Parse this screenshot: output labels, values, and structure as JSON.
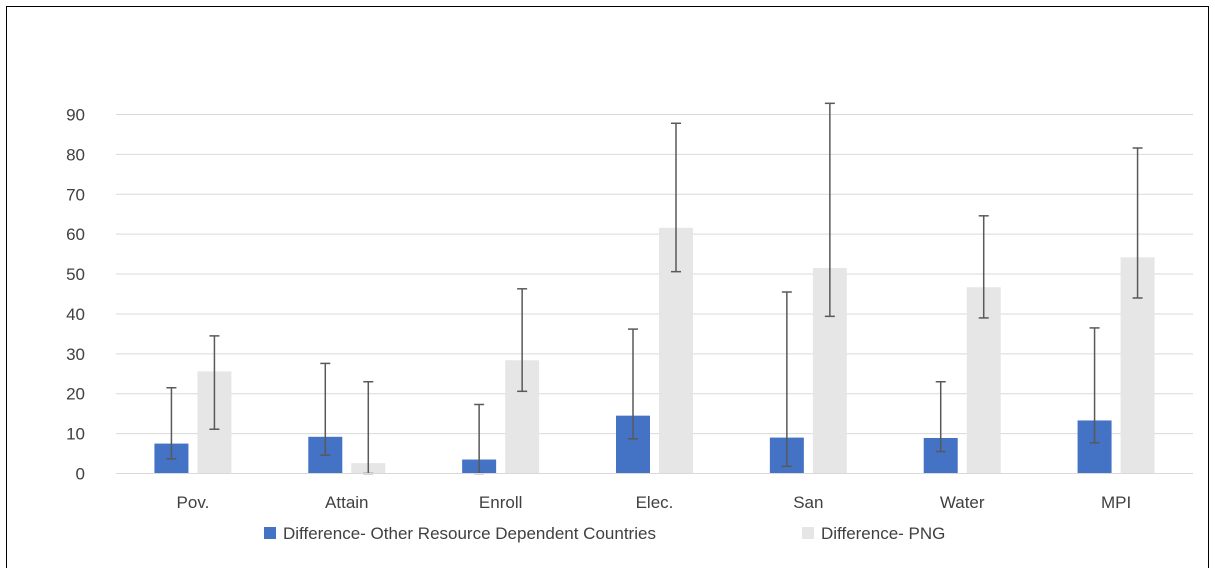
{
  "chart_data": {
    "type": "bar",
    "title": "",
    "xlabel": "",
    "ylabel": "",
    "ylim": [
      0,
      90
    ],
    "yticks": [
      0,
      10,
      20,
      30,
      40,
      50,
      60,
      70,
      80,
      90
    ],
    "grid": true,
    "legend_position": "bottom",
    "categories": [
      "Pov.",
      "Attain",
      "Enroll",
      "Elec.",
      "San",
      "Water",
      "MPI"
    ],
    "series": [
      {
        "name": "Difference- Other Resource Dependent Countries",
        "color": "#4472C4",
        "values": [
          7.5,
          9.2,
          3.5,
          14.5,
          9.0,
          8.9,
          13.3
        ],
        "error_low": [
          3.7,
          4.6,
          0.0,
          8.7,
          1.8,
          5.5,
          7.7
        ],
        "error_high": [
          21.5,
          27.6,
          17.3,
          36.2,
          45.5,
          23.0,
          36.5
        ]
      },
      {
        "name": "Difference- PNG",
        "color": "#E7E6E6",
        "values": [
          25.6,
          2.6,
          28.4,
          61.6,
          51.5,
          46.7,
          54.2
        ],
        "error_low": [
          11.1,
          0.0,
          20.6,
          50.6,
          39.4,
          39.0,
          44.0
        ],
        "error_high": [
          34.5,
          23.0,
          46.3,
          87.8,
          92.8,
          64.6,
          81.6
        ]
      }
    ]
  }
}
